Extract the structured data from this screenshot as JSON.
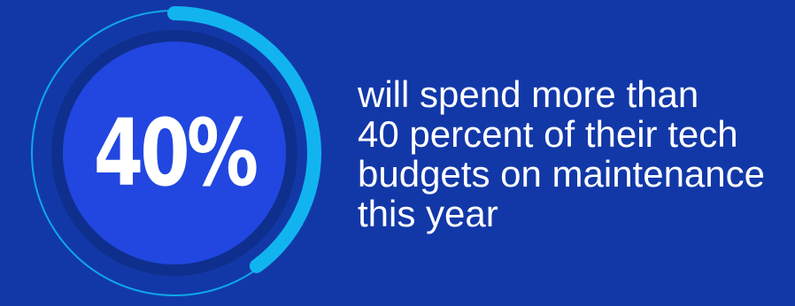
{
  "chart_data": {
    "type": "pie",
    "value_percent": 40,
    "center_label": "40%",
    "caption_lines": [
      "will spend more than",
      "40 percent of their tech",
      "budgets on maintenance",
      "this year"
    ]
  },
  "colors": {
    "background": "#1238a8",
    "inner_disc": "#2147e0",
    "track": "#0f2f8e",
    "progress_arc": "#12b4f0",
    "thin_ring": "#0fa8e8",
    "text": "#ffffff"
  }
}
